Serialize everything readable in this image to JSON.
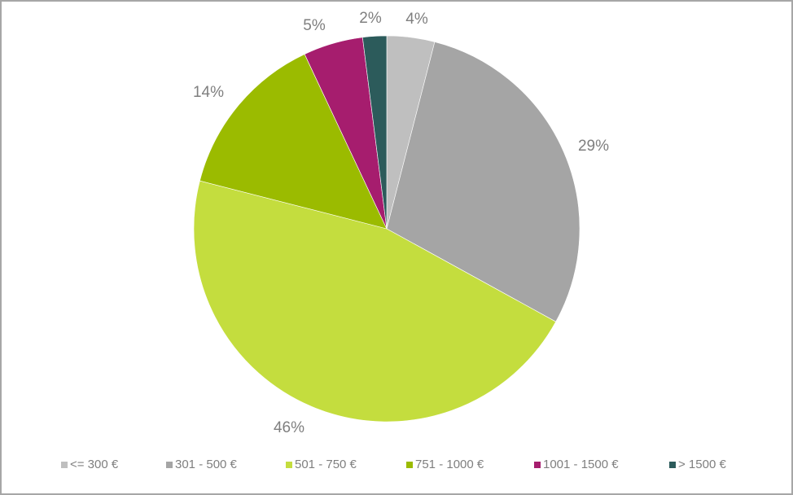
{
  "chart_data": {
    "type": "pie",
    "title": "",
    "categories": [
      "<= 300 €",
      "301 - 500 €",
      "501 - 750 €",
      "751 - 1000 €",
      "1001 - 1500 €",
      "> 1500 €"
    ],
    "values": [
      4,
      29,
      46,
      14,
      5,
      2
    ],
    "unit": "%",
    "colors": [
      "#bfbfbf",
      "#a5a5a5",
      "#c4dd3e",
      "#9bbb00",
      "#a61d6e",
      "#2c5b5b"
    ],
    "start_angle": "12 o'clock",
    "direction": "clockwise",
    "legend_position": "bottom",
    "data_labels": [
      "4%",
      "29%",
      "46%",
      "14%",
      "5%",
      "2%"
    ]
  },
  "labels": {
    "s0": "4%",
    "s1": "29%",
    "s2": "46%",
    "s3": "14%",
    "s4": "5%",
    "s5": "2%"
  },
  "legend": {
    "items": [
      {
        "label": "<= 300 €",
        "color": "#bfbfbf"
      },
      {
        "label": "301 - 500 €",
        "color": "#a5a5a5"
      },
      {
        "label": "501 - 750 €",
        "color": "#c4dd3e"
      },
      {
        "label": "751 - 1000 €",
        "color": "#9bbb00"
      },
      {
        "label": "1001 - 1500 €",
        "color": "#a61d6e"
      },
      {
        "label": "> 1500 €",
        "color": "#2c5b5b"
      }
    ]
  }
}
